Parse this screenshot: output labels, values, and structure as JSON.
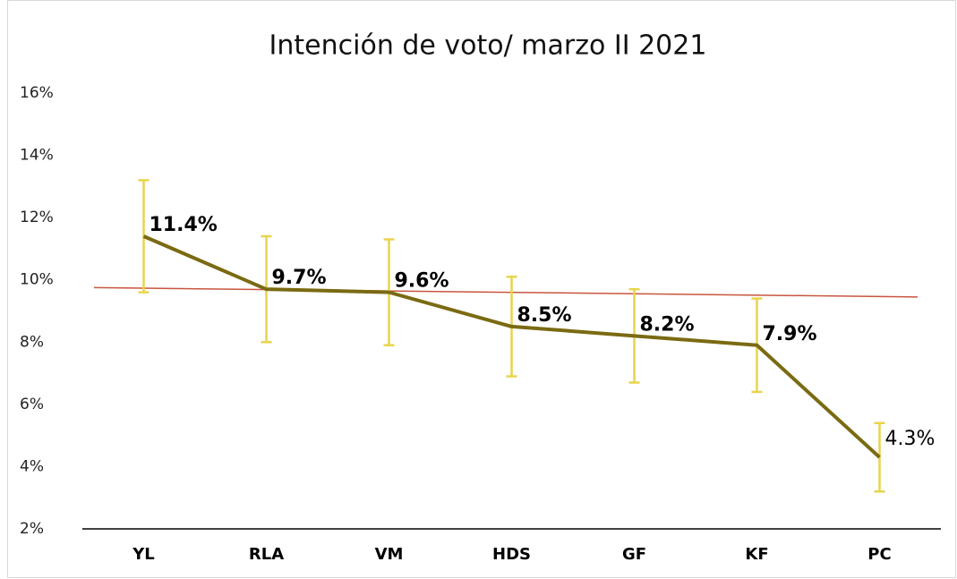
{
  "chart_data": {
    "type": "line",
    "title": "Intención de voto/ marzo II 2021",
    "categories": [
      "YL",
      "RLA",
      "VM",
      "HDS",
      "GF",
      "KF",
      "PC"
    ],
    "series": [
      {
        "color": "#7a6a12",
        "values": [
          11.4,
          9.7,
          9.6,
          8.5,
          8.2,
          7.9,
          4.3
        ],
        "value_labels": [
          "11.4%",
          "9.7%",
          "9.6%",
          "8.5%",
          "8.2%",
          "7.9%",
          "4.3%"
        ],
        "value_label_bold": [
          true,
          true,
          true,
          true,
          true,
          true,
          false
        ],
        "errors": [
          1.8,
          1.7,
          1.7,
          1.6,
          1.5,
          1.5,
          1.1
        ],
        "error_color": "#e8d44d"
      }
    ],
    "reference_line": {
      "color": "#c9553f",
      "values": [
        9.75,
        9.45
      ]
    },
    "ylim": [
      2,
      16
    ],
    "yticks": [
      {
        "value": 2,
        "label": "2%"
      },
      {
        "value": 4,
        "label": "4%"
      },
      {
        "value": 6,
        "label": "6%"
      },
      {
        "value": 8,
        "label": "8%"
      },
      {
        "value": 10,
        "label": "10%"
      },
      {
        "value": 12,
        "label": "12%"
      },
      {
        "value": 14,
        "label": "14%"
      },
      {
        "value": 16,
        "label": "16%"
      }
    ],
    "grid": false
  }
}
